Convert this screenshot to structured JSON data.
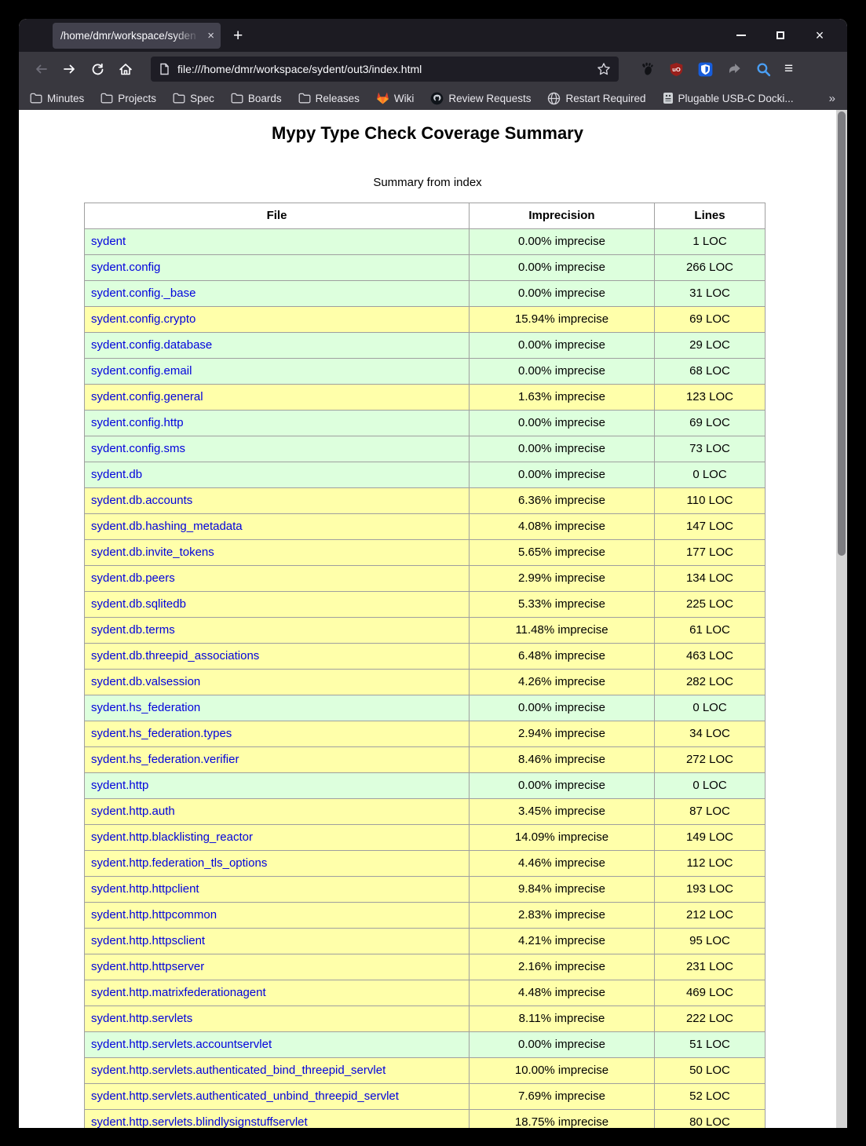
{
  "glyphs": {
    "close_window": "×",
    "tab_close": "×",
    "new_tab": "+",
    "menu": "≡",
    "bookmarks_overflow": "»"
  },
  "browser": {
    "tab_title": "/home/dmr/workspace/syden",
    "url": "file:///home/dmr/workspace/sydent/out3/index.html",
    "bookmarks": [
      {
        "label": "Minutes",
        "icon": "folder"
      },
      {
        "label": "Projects",
        "icon": "folder"
      },
      {
        "label": "Spec",
        "icon": "folder"
      },
      {
        "label": "Boards",
        "icon": "folder"
      },
      {
        "label": "Releases",
        "icon": "folder"
      },
      {
        "label": "Wiki",
        "icon": "gitlab"
      },
      {
        "label": "Review Requests",
        "icon": "github"
      },
      {
        "label": "Restart Required",
        "icon": "globe"
      },
      {
        "label": "Plugable USB-C Docki...",
        "icon": "plugable"
      }
    ]
  },
  "page": {
    "title": "Mypy Type Check Coverage Summary",
    "subtitle": "Summary from index",
    "colors": {
      "good_row": "#ddffdd",
      "warn_row": "#ffffaa",
      "link": "#0202dd"
    },
    "table": {
      "headers": [
        "File",
        "Imprecision",
        "Lines"
      ],
      "rows": [
        {
          "file": "sydent",
          "imprecision": "0.00% imprecise",
          "lines": "1 LOC",
          "quality": "good"
        },
        {
          "file": "sydent.config",
          "imprecision": "0.00% imprecise",
          "lines": "266 LOC",
          "quality": "good"
        },
        {
          "file": "sydent.config._base",
          "imprecision": "0.00% imprecise",
          "lines": "31 LOC",
          "quality": "good"
        },
        {
          "file": "sydent.config.crypto",
          "imprecision": "15.94% imprecise",
          "lines": "69 LOC",
          "quality": "warn"
        },
        {
          "file": "sydent.config.database",
          "imprecision": "0.00% imprecise",
          "lines": "29 LOC",
          "quality": "good"
        },
        {
          "file": "sydent.config.email",
          "imprecision": "0.00% imprecise",
          "lines": "68 LOC",
          "quality": "good"
        },
        {
          "file": "sydent.config.general",
          "imprecision": "1.63% imprecise",
          "lines": "123 LOC",
          "quality": "warn"
        },
        {
          "file": "sydent.config.http",
          "imprecision": "0.00% imprecise",
          "lines": "69 LOC",
          "quality": "good"
        },
        {
          "file": "sydent.config.sms",
          "imprecision": "0.00% imprecise",
          "lines": "73 LOC",
          "quality": "good"
        },
        {
          "file": "sydent.db",
          "imprecision": "0.00% imprecise",
          "lines": "0 LOC",
          "quality": "good"
        },
        {
          "file": "sydent.db.accounts",
          "imprecision": "6.36% imprecise",
          "lines": "110 LOC",
          "quality": "warn"
        },
        {
          "file": "sydent.db.hashing_metadata",
          "imprecision": "4.08% imprecise",
          "lines": "147 LOC",
          "quality": "warn"
        },
        {
          "file": "sydent.db.invite_tokens",
          "imprecision": "5.65% imprecise",
          "lines": "177 LOC",
          "quality": "warn"
        },
        {
          "file": "sydent.db.peers",
          "imprecision": "2.99% imprecise",
          "lines": "134 LOC",
          "quality": "warn"
        },
        {
          "file": "sydent.db.sqlitedb",
          "imprecision": "5.33% imprecise",
          "lines": "225 LOC",
          "quality": "warn"
        },
        {
          "file": "sydent.db.terms",
          "imprecision": "11.48% imprecise",
          "lines": "61 LOC",
          "quality": "warn"
        },
        {
          "file": "sydent.db.threepid_associations",
          "imprecision": "6.48% imprecise",
          "lines": "463 LOC",
          "quality": "warn"
        },
        {
          "file": "sydent.db.valsession",
          "imprecision": "4.26% imprecise",
          "lines": "282 LOC",
          "quality": "warn"
        },
        {
          "file": "sydent.hs_federation",
          "imprecision": "0.00% imprecise",
          "lines": "0 LOC",
          "quality": "good"
        },
        {
          "file": "sydent.hs_federation.types",
          "imprecision": "2.94% imprecise",
          "lines": "34 LOC",
          "quality": "warn"
        },
        {
          "file": "sydent.hs_federation.verifier",
          "imprecision": "8.46% imprecise",
          "lines": "272 LOC",
          "quality": "warn"
        },
        {
          "file": "sydent.http",
          "imprecision": "0.00% imprecise",
          "lines": "0 LOC",
          "quality": "good"
        },
        {
          "file": "sydent.http.auth",
          "imprecision": "3.45% imprecise",
          "lines": "87 LOC",
          "quality": "warn"
        },
        {
          "file": "sydent.http.blacklisting_reactor",
          "imprecision": "14.09% imprecise",
          "lines": "149 LOC",
          "quality": "warn"
        },
        {
          "file": "sydent.http.federation_tls_options",
          "imprecision": "4.46% imprecise",
          "lines": "112 LOC",
          "quality": "warn"
        },
        {
          "file": "sydent.http.httpclient",
          "imprecision": "9.84% imprecise",
          "lines": "193 LOC",
          "quality": "warn"
        },
        {
          "file": "sydent.http.httpcommon",
          "imprecision": "2.83% imprecise",
          "lines": "212 LOC",
          "quality": "warn"
        },
        {
          "file": "sydent.http.httpsclient",
          "imprecision": "4.21% imprecise",
          "lines": "95 LOC",
          "quality": "warn"
        },
        {
          "file": "sydent.http.httpserver",
          "imprecision": "2.16% imprecise",
          "lines": "231 LOC",
          "quality": "warn"
        },
        {
          "file": "sydent.http.matrixfederationagent",
          "imprecision": "4.48% imprecise",
          "lines": "469 LOC",
          "quality": "warn"
        },
        {
          "file": "sydent.http.servlets",
          "imprecision": "8.11% imprecise",
          "lines": "222 LOC",
          "quality": "warn"
        },
        {
          "file": "sydent.http.servlets.accountservlet",
          "imprecision": "0.00% imprecise",
          "lines": "51 LOC",
          "quality": "good"
        },
        {
          "file": "sydent.http.servlets.authenticated_bind_threepid_servlet",
          "imprecision": "10.00% imprecise",
          "lines": "50 LOC",
          "quality": "warn"
        },
        {
          "file": "sydent.http.servlets.authenticated_unbind_threepid_servlet",
          "imprecision": "7.69% imprecise",
          "lines": "52 LOC",
          "quality": "warn"
        },
        {
          "file": "sydent.http.servlets.blindlysignstuffservlet",
          "imprecision": "18.75% imprecise",
          "lines": "80 LOC",
          "quality": "warn"
        }
      ]
    }
  }
}
